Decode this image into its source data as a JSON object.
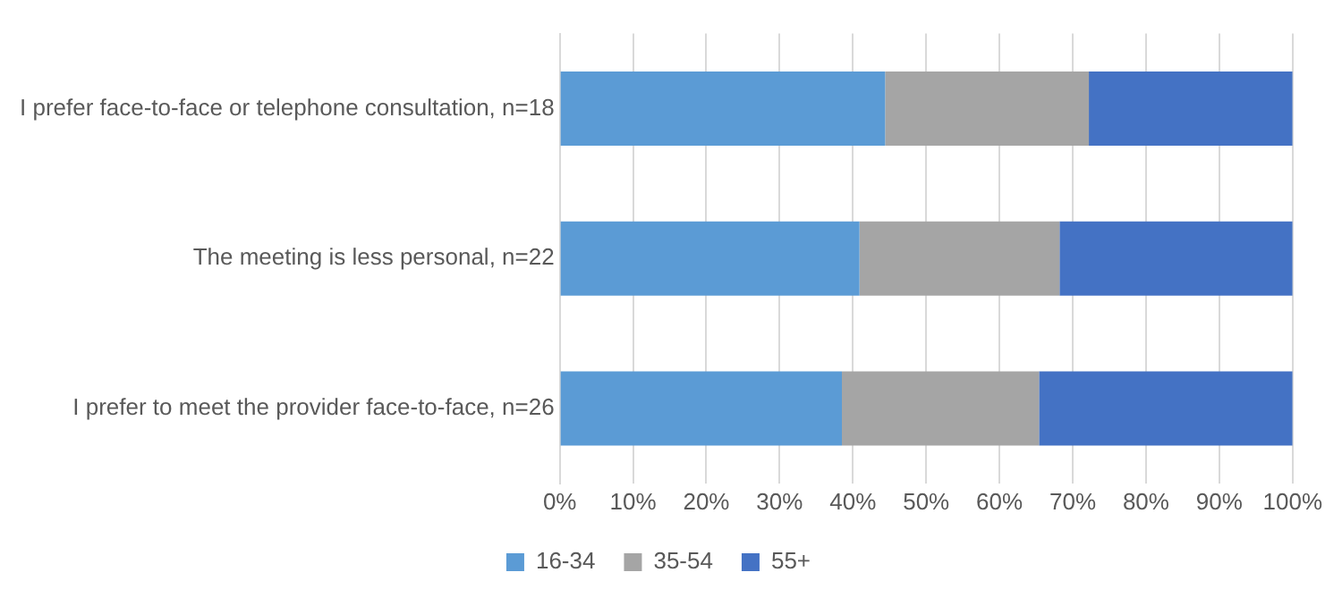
{
  "chart_data": {
    "type": "bar",
    "orientation": "horizontal",
    "stacked": true,
    "categories": [
      "I prefer face-to-face or telephone consultation, n=18",
      "The meeting is less personal, n=22",
      "I prefer to meet the provider face-to-face, n=26"
    ],
    "series": [
      {
        "name": "16-34",
        "color": "#5b9bd5",
        "values": [
          44.4,
          40.9,
          38.5
        ]
      },
      {
        "name": "35-54",
        "color": "#a5a5a5",
        "values": [
          27.8,
          27.3,
          26.9
        ]
      },
      {
        "name": "55+",
        "color": "#4472c4",
        "values": [
          27.8,
          31.8,
          34.6
        ]
      }
    ],
    "xlim": [
      0,
      100
    ],
    "xticks": [
      {
        "value": 0,
        "label": "0%"
      },
      {
        "value": 10,
        "label": "10%"
      },
      {
        "value": 20,
        "label": "20%"
      },
      {
        "value": 30,
        "label": "30%"
      },
      {
        "value": 40,
        "label": "40%"
      },
      {
        "value": 50,
        "label": "50%"
      },
      {
        "value": 60,
        "label": "60%"
      },
      {
        "value": 70,
        "label": "70%"
      },
      {
        "value": 80,
        "label": "80%"
      },
      {
        "value": 90,
        "label": "90%"
      },
      {
        "value": 100,
        "label": "100%"
      }
    ],
    "grid": "x",
    "legend": "bottom"
  }
}
